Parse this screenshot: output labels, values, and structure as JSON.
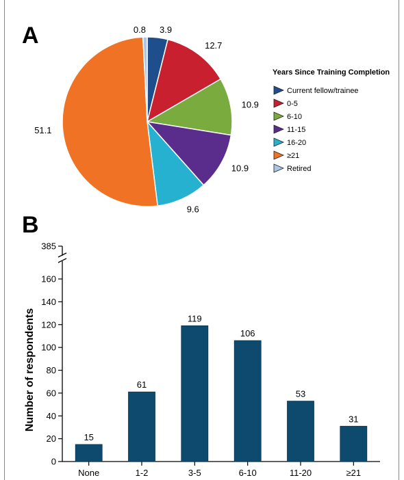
{
  "chart_data": [
    {
      "type": "pie",
      "panel_label": "A",
      "legend_title": "Years Since Training Completion",
      "legend_placement": "right",
      "categories": [
        "Current fellow/trainee",
        "0-5",
        "6-10",
        "11-15",
        "16-20",
        "≥21",
        "Retired"
      ],
      "values": [
        3.9,
        12.7,
        10.9,
        10.9,
        9.6,
        51.1,
        0.8
      ],
      "value_labels": [
        "3.9",
        "12.7",
        "10.9",
        "10.9",
        "9.6",
        "51.1",
        "0.8"
      ],
      "colors": [
        "#1f4e8c",
        "#c8202f",
        "#7aab3e",
        "#5a2d8c",
        "#27b1d1",
        "#f07224",
        "#a9c6e8"
      ]
    },
    {
      "type": "bar",
      "panel_label": "B",
      "ylabel": "Number of respondents",
      "xlabel": "",
      "categories": [
        "None",
        "1-2",
        "3-5",
        "6-10",
        "11-20",
        "≥21"
      ],
      "values": [
        15,
        61,
        119,
        106,
        53,
        31
      ],
      "value_labels": [
        "15",
        "61",
        "119",
        "106",
        "53",
        "31"
      ],
      "ylim": [
        0,
        160
      ],
      "y_ticks": [
        "0",
        "20",
        "40",
        "60",
        "80",
        "100",
        "120",
        "140",
        "160"
      ],
      "y_break_label": "385",
      "bar_color": "#0e4a6e",
      "grid": false
    }
  ]
}
